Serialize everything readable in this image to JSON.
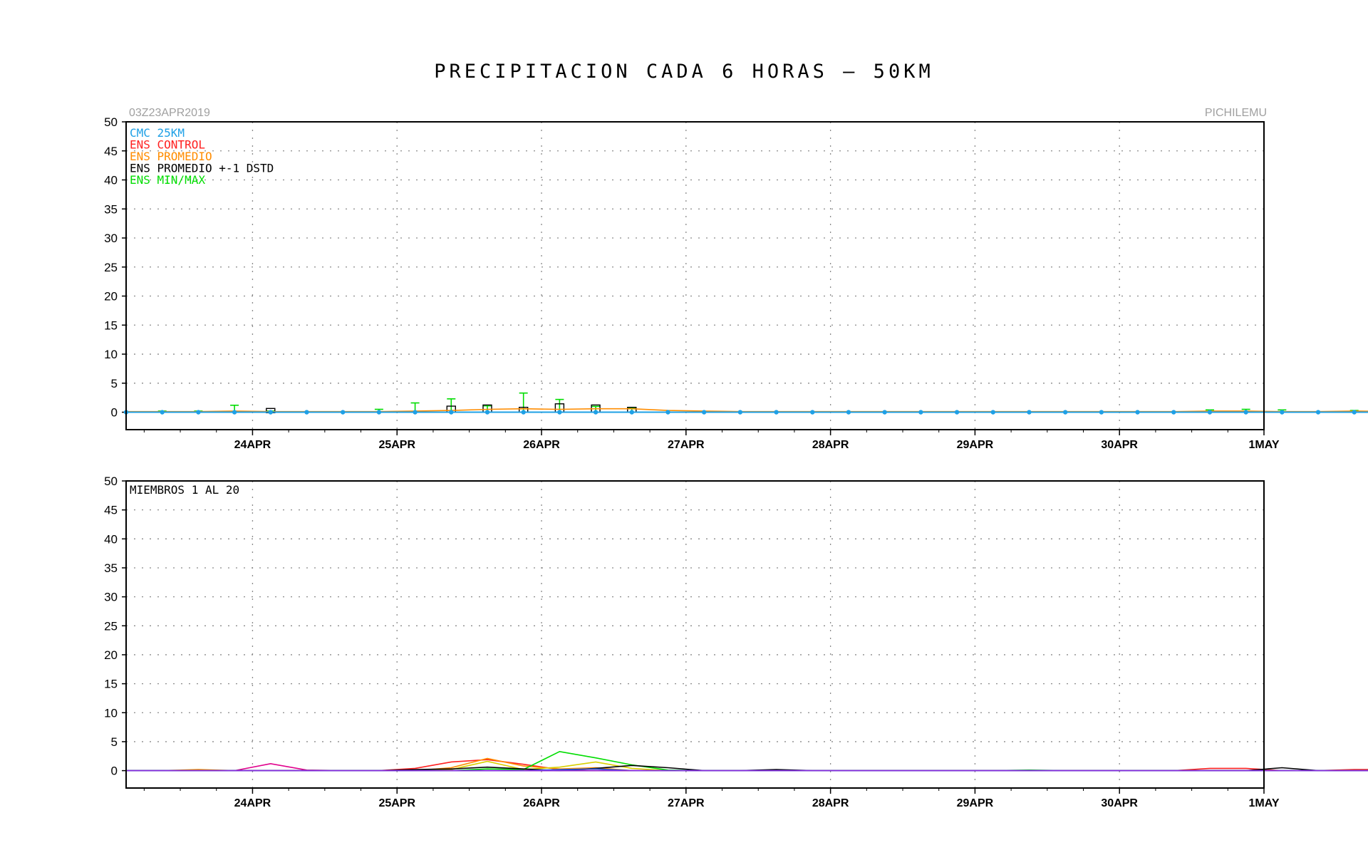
{
  "title": "PRECIPITACION CADA 6 HORAS — 50KM",
  "run_label": "03Z23APR2019",
  "location_label": "PICHILEMU",
  "colors": {
    "cmc": "#1ea0e6",
    "control": "#ff2020",
    "promedio": "#ff8c00",
    "stdbox": "#000000",
    "minmax": "#00dd00",
    "grid": "#8a8a8a"
  },
  "chart_data": [
    {
      "type": "line",
      "panel": "top",
      "title": "",
      "xlabel": "",
      "ylabel": "",
      "ylim": [
        -3,
        50
      ],
      "yticks": [
        0,
        5,
        10,
        15,
        20,
        25,
        30,
        35,
        40,
        45,
        50
      ],
      "x_start": "03Z23APR2019",
      "x_step_hours": 6,
      "xticks": [
        "24APR",
        "25APR",
        "26APR",
        "27APR",
        "28APR",
        "29APR",
        "30APR",
        "1MAY"
      ],
      "grid": true,
      "legend": [
        {
          "label": "CMC 25KM",
          "color": "#1ea0e6"
        },
        {
          "label": "ENS CONTROL",
          "color": "#ff2020"
        },
        {
          "label": "ENS PROMEDIO",
          "color": "#ff8c00"
        },
        {
          "label": "ENS PROMEDIO +-1 DSTD",
          "color": "#000000"
        },
        {
          "label": "ENS MIN/MAX",
          "color": "#00dd00"
        }
      ],
      "legend_position": "top-left",
      "cmc_25km": [
        0,
        0,
        0,
        0,
        0,
        0,
        0,
        0,
        0,
        0,
        0,
        0,
        0,
        0,
        0,
        0,
        0,
        0,
        0,
        0,
        0,
        0,
        0,
        0,
        0,
        0,
        0,
        0,
        0,
        0,
        0,
        0,
        0,
        0,
        0,
        0,
        0,
        0,
        0,
        0,
        0,
        0,
        0,
        0,
        0,
        0,
        0,
        0,
        0,
        0,
        0,
        0,
        0,
        0,
        0,
        0,
        0,
        0,
        0,
        0,
        0,
        0,
        0,
        0
      ],
      "ens_promedio": [
        0.1,
        0.1,
        0.1,
        0.2,
        0.1,
        0.1,
        0.1,
        0.1,
        0.2,
        0.3,
        0.5,
        0.6,
        0.5,
        0.6,
        0.6,
        0.3,
        0.2,
        0.1,
        0.1,
        0.1,
        0.1,
        0.1,
        0.1,
        0.1,
        0.1,
        0.1,
        0.1,
        0.1,
        0.1,
        0.1,
        0.2,
        0.2,
        0.1,
        0.1,
        0.2,
        0.1,
        0.1,
        0.1,
        0.1,
        0.1,
        0.1,
        0.1,
        0.1,
        0.1,
        0.2,
        0.3,
        0.3,
        0.1,
        0.2,
        0.3,
        0.1,
        0.1,
        0.1,
        0.1,
        0.1,
        0.1,
        0.1,
        0.1,
        0.1,
        0.1,
        0.1,
        0.2,
        0.1,
        0.1
      ],
      "ens_stdbox": [
        {
          "i": 4,
          "lo": 0,
          "hi": 0.4
        },
        {
          "i": 9,
          "lo": 0,
          "hi": 0.8
        },
        {
          "i": 10,
          "lo": 0,
          "hi": 1.0
        },
        {
          "i": 11,
          "lo": 0,
          "hi": 0.6
        },
        {
          "i": 12,
          "lo": 0,
          "hi": 1.2
        },
        {
          "i": 13,
          "lo": 0,
          "hi": 1.0
        },
        {
          "i": 14,
          "lo": 0,
          "hi": 0.6
        },
        {
          "i": 45,
          "lo": 0,
          "hi": 0.9
        },
        {
          "i": 46,
          "lo": 0,
          "hi": 0.5
        },
        {
          "i": 49,
          "lo": 0,
          "hi": 0.5
        },
        {
          "i": 59,
          "lo": 0,
          "hi": 0.4
        }
      ],
      "ens_max": [
        0,
        0.2,
        0.2,
        1.2,
        0.2,
        0.1,
        0.1,
        0.5,
        1.6,
        2.3,
        1.1,
        3.3,
        2.2,
        1.0,
        0.7,
        0.1,
        0.1,
        0.1,
        0.1,
        0.1,
        0.1,
        0.1,
        0.1,
        0.1,
        0.1,
        0.1,
        0.1,
        0.1,
        0.1,
        0.1,
        0.4,
        0.5,
        0.4,
        0.1,
        0.3,
        0.3,
        0.1,
        0.1,
        0.2,
        0.2,
        0.1,
        0.1,
        0.1,
        0.1,
        0.9,
        2.3,
        1.4,
        0.1,
        0.7,
        1.5,
        0.2,
        0.1,
        0.1,
        0.6,
        0.1,
        0.1,
        0.2,
        0.1,
        0.1,
        0.1,
        0.2,
        1.0,
        0.5,
        0.1
      ]
    },
    {
      "type": "line",
      "panel": "bottom",
      "title": "",
      "xlabel": "",
      "ylabel": "",
      "annotation": "MIEMBROS 1 AL 20",
      "ylim": [
        -3,
        50
      ],
      "yticks": [
        0,
        5,
        10,
        15,
        20,
        25,
        30,
        35,
        40,
        45,
        50
      ],
      "x_start": "03Z23APR2019",
      "x_step_hours": 6,
      "xticks": [
        "24APR",
        "25APR",
        "26APR",
        "27APR",
        "28APR",
        "29APR",
        "30APR",
        "1MAY"
      ],
      "grid": true,
      "series": [
        {
          "color": "#e0008c",
          "values": [
            0,
            0,
            0,
            0,
            1.2,
            0.1,
            0,
            0,
            0,
            0,
            0,
            0,
            0,
            0,
            0,
            0,
            0,
            0,
            0,
            0,
            0,
            0,
            0,
            0,
            0,
            0,
            0,
            0,
            0,
            0,
            0,
            0,
            0,
            0,
            0,
            0,
            0,
            0,
            0,
            0,
            0,
            0,
            0,
            0,
            0,
            0,
            0,
            0,
            0,
            0,
            0,
            0,
            0,
            0,
            0,
            0,
            0,
            0.2,
            0,
            0.3,
            0,
            0,
            0,
            0,
            0
          ]
        },
        {
          "color": "#ff2020",
          "values": [
            0,
            0,
            0,
            0,
            0,
            0,
            0,
            0,
            0.4,
            1.5,
            1.9,
            1.1,
            0.2,
            0,
            0,
            0,
            0,
            0,
            0,
            0,
            0,
            0,
            0,
            0,
            0,
            0,
            0,
            0,
            0,
            0,
            0.4,
            0.4,
            0,
            0,
            0.2,
            0.2,
            0,
            0,
            0,
            0,
            0,
            0,
            0,
            0,
            0,
            0,
            0,
            0,
            0,
            0,
            0,
            0,
            0,
            0,
            0,
            0,
            0,
            0,
            0,
            0,
            0,
            0,
            0,
            0,
            0
          ]
        },
        {
          "color": "#ff8c00",
          "values": [
            0,
            0,
            0.2,
            0,
            0,
            0,
            0,
            0,
            0,
            0.5,
            2.1,
            0.8,
            0.3,
            0.5,
            0,
            0,
            0,
            0,
            0,
            0,
            0,
            0,
            0,
            0,
            0,
            0,
            0,
            0,
            0,
            0,
            0,
            0,
            0,
            0,
            0,
            0,
            0,
            0,
            0,
            0,
            0,
            0,
            0,
            0,
            0,
            0,
            0,
            0,
            0,
            0,
            0,
            0,
            0,
            0,
            0,
            0,
            0,
            0,
            0,
            0,
            0,
            0,
            0,
            0,
            0
          ]
        },
        {
          "color": "#d8d000",
          "values": [
            0,
            0,
            0,
            0,
            0,
            0,
            0,
            0,
            0,
            0.2,
            1.6,
            0.2,
            0.6,
            1.5,
            0.4,
            0,
            0,
            0,
            0,
            0,
            0,
            0,
            0,
            0,
            0,
            0,
            0,
            0,
            0,
            0,
            0,
            0,
            0,
            0,
            0,
            0,
            0,
            0,
            0,
            0,
            0,
            0,
            0,
            0,
            0,
            0,
            0,
            0,
            0,
            0,
            0,
            0,
            0,
            0,
            0,
            0,
            0,
            0,
            0,
            0,
            0,
            0,
            0,
            0,
            0
          ]
        },
        {
          "color": "#00dd00",
          "values": [
            0,
            0,
            0,
            0,
            0,
            0,
            0,
            0,
            0,
            0,
            0.3,
            0.2,
            3.3,
            2.2,
            1.0,
            0.1,
            0,
            0,
            0,
            0,
            0,
            0,
            0,
            0,
            0,
            0.1,
            0,
            0,
            0,
            0,
            0,
            0,
            0,
            0,
            0,
            0,
            0,
            0,
            0,
            0,
            0,
            0,
            0,
            0,
            0,
            0,
            0,
            0,
            0,
            0,
            0,
            0,
            0,
            0.6,
            0,
            0,
            0,
            0,
            0,
            0,
            0,
            1.0,
            0.4,
            0,
            0
          ]
        },
        {
          "color": "#000000",
          "values": [
            0,
            0,
            0,
            0,
            0,
            0,
            0,
            0,
            0.2,
            0.3,
            0.6,
            0.3,
            0,
            0.4,
            0.9,
            0.5,
            0,
            0,
            0.2,
            0,
            0,
            0,
            0,
            0,
            0,
            0,
            0,
            0,
            0,
            0,
            0,
            0,
            0.5,
            0,
            0,
            0,
            0,
            0,
            0,
            0,
            0,
            0,
            0,
            0,
            0.1,
            0.8,
            2.2,
            1.4,
            0,
            0.5,
            1.5,
            0,
            0,
            0,
            0,
            0,
            0,
            0,
            0,
            0,
            0,
            0,
            0,
            0,
            0
          ]
        },
        {
          "color": "#1e5adc",
          "values": [
            0,
            0,
            0,
            0,
            0,
            0,
            0,
            0,
            0,
            0,
            0,
            0,
            0.2,
            0.3,
            0,
            0,
            0,
            0,
            0,
            0,
            0,
            0,
            0,
            0,
            0,
            0,
            0,
            0,
            0,
            0,
            0,
            0,
            0,
            0,
            0,
            0,
            0,
            0,
            0.3,
            0,
            0,
            0,
            0,
            0,
            0,
            0,
            0,
            0,
            0,
            0,
            0,
            0,
            0,
            0,
            0,
            0,
            0,
            0,
            0,
            0,
            0,
            0,
            0,
            0,
            0
          ]
        },
        {
          "color": "#8a2be2",
          "values": [
            0,
            0,
            0,
            0,
            0,
            0,
            0,
            0,
            0,
            0,
            0,
            0,
            0,
            0,
            0,
            0,
            0,
            0,
            0,
            0,
            0,
            0,
            0,
            0,
            0,
            0,
            0,
            0,
            0,
            0,
            0,
            0,
            0,
            0,
            0,
            0,
            0,
            0,
            0,
            0,
            0,
            0,
            0,
            0,
            0,
            0,
            0,
            0,
            0,
            0,
            0,
            0,
            0,
            0,
            0,
            0,
            0,
            0.3,
            0,
            0.4,
            0.1,
            0,
            0,
            0,
            0
          ]
        }
      ]
    }
  ]
}
